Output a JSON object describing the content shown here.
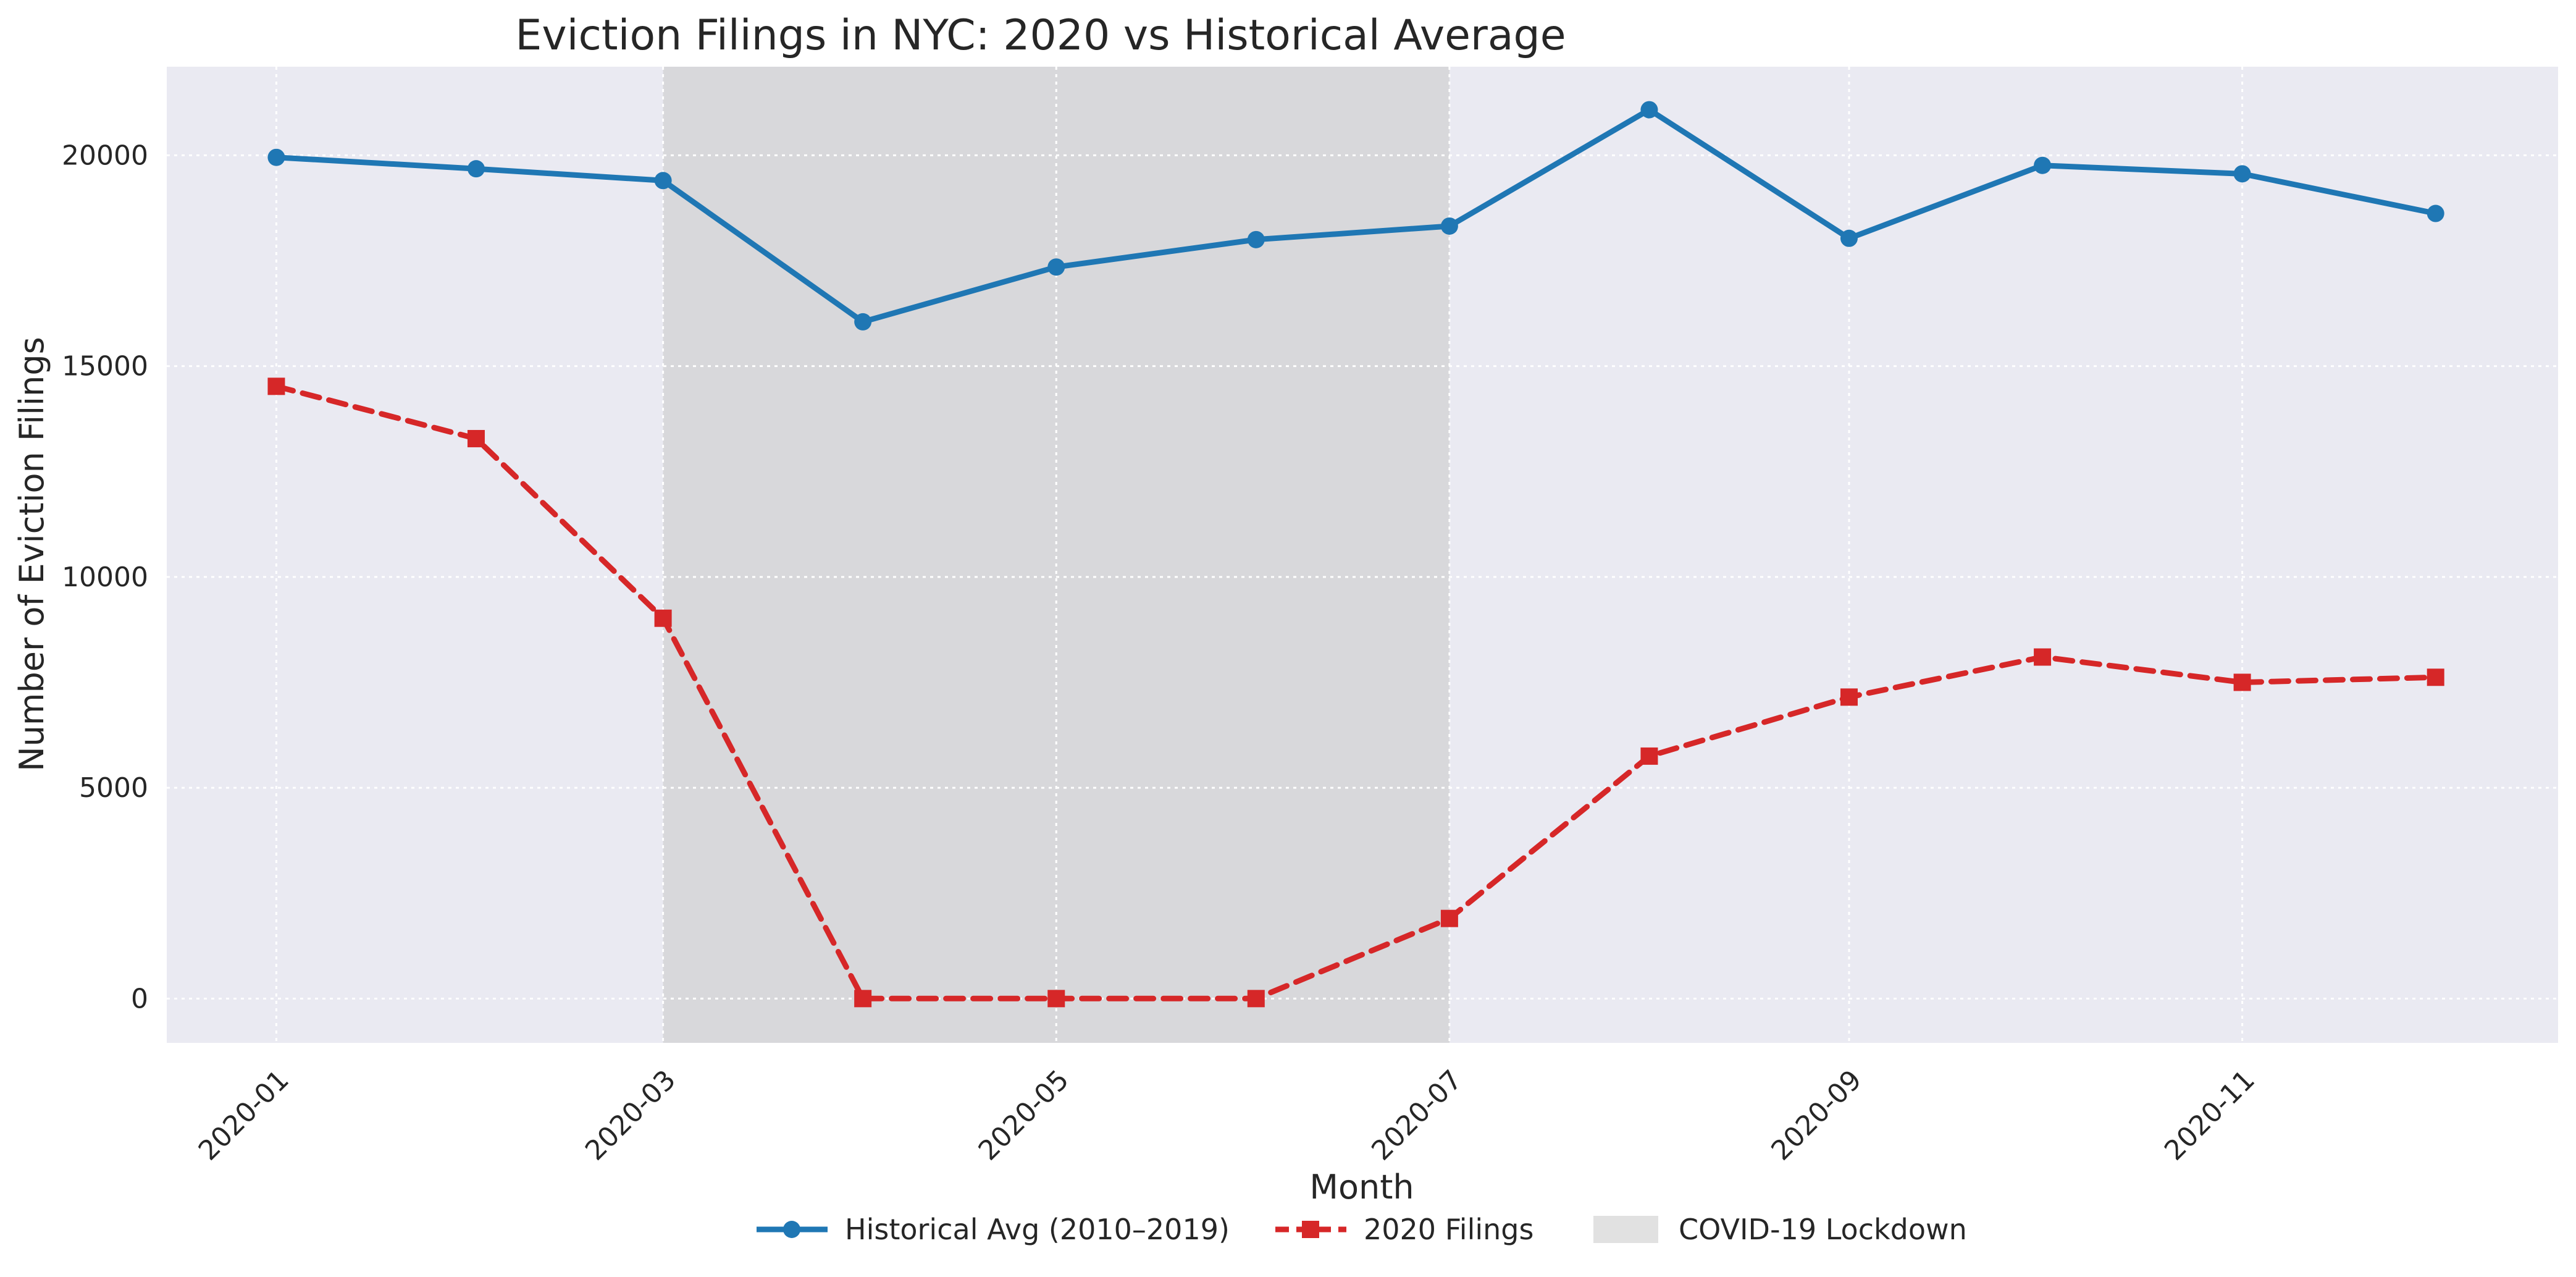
{
  "chart_data": {
    "type": "line",
    "title": "Eviction Filings in NYC: 2020 vs Historical Average",
    "xlabel": "Month",
    "ylabel": "Number of Eviction Filings",
    "x": [
      "2020-01-01",
      "2020-02-01",
      "2020-03-01",
      "2020-04-01",
      "2020-05-01",
      "2020-06-01",
      "2020-07-01",
      "2020-08-01",
      "2020-09-01",
      "2020-10-01",
      "2020-11-01",
      "2020-12-01"
    ],
    "x_ticks": [
      "2020-01",
      "2020-03",
      "2020-05",
      "2020-07",
      "2020-09",
      "2020-11"
    ],
    "y_ticks": [
      0,
      5000,
      10000,
      15000,
      20000
    ],
    "ylim": [
      -1050,
      22100
    ],
    "xlim": [
      "2019-12-15",
      "2020-12-20"
    ],
    "grid": true,
    "legend_position": "bottom-center",
    "series": [
      {
        "name": "Historical Avg (2010–2019)",
        "values": [
          19950,
          19680,
          19400,
          16050,
          17350,
          18000,
          18320,
          21080,
          18030,
          19760,
          19560,
          18620
        ],
        "color": "#1f77b4",
        "marker": "circle",
        "linestyle": "solid"
      },
      {
        "name": "2020 Filings",
        "values": [
          14520,
          13280,
          9020,
          0,
          0,
          0,
          1900,
          5750,
          7150,
          8100,
          7500,
          7620
        ],
        "color": "#d62728",
        "marker": "square",
        "linestyle": "dashed"
      }
    ],
    "shaded_region": {
      "name": "COVID-19 Lockdown",
      "x_start": "2020-03-01",
      "x_end": "2020-07-01",
      "color": "#c8c8c8"
    },
    "background_color": "#eaeaf2"
  }
}
